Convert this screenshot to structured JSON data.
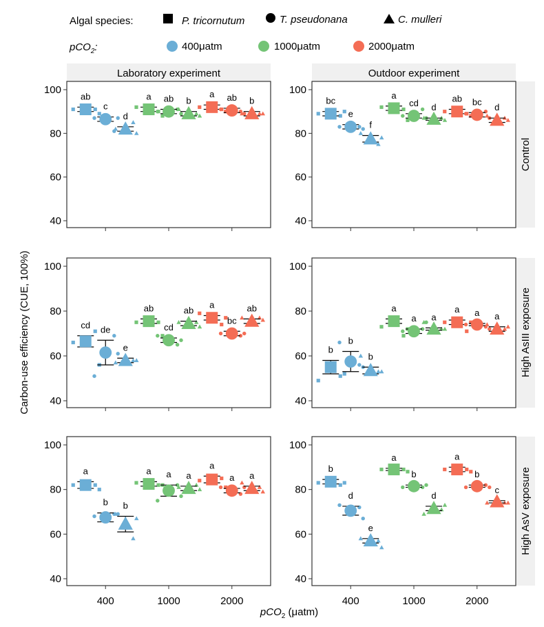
{
  "legend": {
    "species_label": "Algal species:",
    "species": [
      {
        "name": "P. tricornutum",
        "shape": "square"
      },
      {
        "name": "T. pseudonana",
        "shape": "circle"
      },
      {
        "name": "C. mulleri",
        "shape": "triangle"
      }
    ],
    "pco2_label_main": "pCO",
    "pco2_label_sub": "2",
    "pco2_label_suffix": ":",
    "pco2_levels": [
      {
        "name": "400μatm",
        "color": "#6baed6"
      },
      {
        "name": "1000μatm",
        "color": "#74c476"
      },
      {
        "name": "2000μatm",
        "color": "#f46d55"
      }
    ]
  },
  "chart_data": {
    "type": "scatter",
    "title": "",
    "ylabel": "Carbon-use efficiency (CUE, 100%)",
    "xlabel_main": "pCO",
    "xlabel_sub": "2",
    "xlabel_suffix": " (μatm)",
    "ylim": [
      38,
      104
    ],
    "yticks": [
      40,
      60,
      80,
      100
    ],
    "categories": [
      "400",
      "1000",
      "2000"
    ],
    "columns": [
      "Laboratory experiment",
      "Outdoor experiment"
    ],
    "rows": [
      "Control",
      "High AsIII exposure",
      "High AsV exposure"
    ],
    "species_order": [
      "P. tricornutum",
      "T. pseudonana",
      "C. mulleri"
    ],
    "colors": {
      "400": "#6baed6",
      "1000": "#74c476",
      "2000": "#f46d55"
    },
    "panels": [
      {
        "column": "Laboratory experiment",
        "row": "Control",
        "groups": [
          {
            "pco2": "400",
            "means": [
              91,
              86.5,
              82
            ],
            "se": [
              1,
              1,
              1
            ],
            "letters": [
              "ab",
              "c",
              "d"
            ],
            "points": [
              [
                91,
                91,
                89
              ],
              [
                87,
                81,
                87
              ],
              [
                82,
                85,
                80
              ]
            ]
          },
          {
            "pco2": "1000",
            "means": [
              91,
              90,
              89
            ],
            "se": [
              1,
              1,
              1
            ],
            "letters": [
              "a",
              "ab",
              "b"
            ],
            "points": [
              [
                92,
                90,
                88
              ],
              [
                90,
                91,
                89
              ],
              [
                91,
                89,
                88
              ]
            ]
          },
          {
            "pco2": "2000",
            "means": [
              92,
              90.5,
              89
            ],
            "se": [
              1,
              1,
              1
            ],
            "letters": [
              "a",
              "ab",
              "b"
            ],
            "points": [
              [
                92,
                91,
                90
              ],
              [
                91,
                90,
                89
              ],
              [
                89,
                89,
                89
              ]
            ]
          }
        ]
      },
      {
        "column": "Outdoor experiment",
        "row": "Control",
        "groups": [
          {
            "pco2": "400",
            "means": [
              89,
              83,
              77.5
            ],
            "se": [
              1,
              1,
              1.5
            ],
            "letters": [
              "bc",
              "e",
              "f"
            ],
            "points": [
              [
                89,
                88,
                90
              ],
              [
                83,
                83,
                82
              ],
              [
                80,
                75,
                78
              ]
            ]
          },
          {
            "pco2": "1000",
            "means": [
              91.5,
              88,
              86.5
            ],
            "se": [
              1,
              1,
              0.5
            ],
            "letters": [
              "a",
              "cd",
              "d"
            ],
            "points": [
              [
                92,
                91,
                86
              ],
              [
                88,
                91,
                87
              ],
              [
                87,
                87,
                86
              ]
            ]
          },
          {
            "pco2": "2000",
            "means": [
              90,
              88.5,
              86
            ],
            "se": [
              1,
              1,
              1
            ],
            "letters": [
              "ab",
              "bc",
              "d"
            ],
            "points": [
              [
                90,
                89,
                88
              ],
              [
                89,
                90,
                87
              ],
              [
                88,
                87,
                86
              ]
            ]
          }
        ]
      },
      {
        "column": "Laboratory experiment",
        "row": "High AsIII exposure",
        "groups": [
          {
            "pco2": "400",
            "means": [
              66.5,
              61.5,
              58
            ],
            "se": [
              2.5,
              5.5,
              1
            ],
            "letters": [
              "cd",
              "de",
              "e"
            ],
            "points": [
              [
                66,
                71,
                56
              ],
              [
                51,
                69,
                61
              ],
              [
                57,
                58,
                58
              ]
            ]
          },
          {
            "pco2": "1000",
            "means": [
              75.5,
              67,
              74.5
            ],
            "se": [
              1,
              1,
              1
            ],
            "letters": [
              "ab",
              "cd",
              "ab"
            ],
            "points": [
              [
                75,
                75,
                69
              ],
              [
                69,
                65,
                67
              ],
              [
                75,
                75,
                73
              ]
            ]
          },
          {
            "pco2": "2000",
            "means": [
              77,
              70,
              75.5
            ],
            "se": [
              1,
              1,
              1
            ],
            "letters": [
              "a",
              "bc",
              "ab"
            ],
            "points": [
              [
                79,
                74,
                77
              ],
              [
                70,
                69,
                70
              ],
              [
                77,
                77,
                76
              ]
            ]
          }
        ]
      },
      {
        "column": "Outdoor experiment",
        "row": "High AsIII exposure",
        "groups": [
          {
            "pco2": "400",
            "means": [
              55,
              57.5,
              53.5
            ],
            "se": [
              3,
              4.5,
              1.5
            ],
            "letters": [
              "b",
              "b",
              "b"
            ],
            "points": [
              [
                49,
                51,
                52
              ],
              [
                66,
                56,
                55
              ],
              [
                60,
                53,
                53
              ]
            ]
          },
          {
            "pco2": "1000",
            "means": [
              75.5,
              71,
              72
            ],
            "se": [
              1,
              1,
              0.5
            ],
            "letters": [
              "a",
              "a",
              "a"
            ],
            "points": [
              [
                73,
                69,
                72
              ],
              [
                71,
                72,
                75
              ],
              [
                75,
                72,
                72
              ]
            ]
          },
          {
            "pco2": "2000",
            "means": [
              75,
              74,
              72
            ],
            "se": [
              1,
              0.5,
              1
            ],
            "letters": [
              "a",
              "a",
              "a"
            ],
            "points": [
              [
                75,
                71,
                75
              ],
              [
                74,
                73,
                72
              ],
              [
                74,
                72,
                73
              ]
            ]
          }
        ]
      },
      {
        "column": "Laboratory experiment",
        "row": "High AsV exposure",
        "groups": [
          {
            "pco2": "400",
            "means": [
              82,
              67.5,
              64.5
            ],
            "se": [
              1.5,
              2,
              3.5
            ],
            "letters": [
              "a",
              "b",
              "b"
            ],
            "points": [
              [
                82,
                82,
                80
              ],
              [
                68,
                69,
                69
              ],
              [
                69,
                58,
                67
              ]
            ]
          },
          {
            "pco2": "1000",
            "means": [
              82.5,
              79.5,
              80.5
            ],
            "se": [
              1,
              2.5,
              1
            ],
            "letters": [
              "a",
              "a",
              "a"
            ],
            "points": [
              [
                83,
                82,
                82
              ],
              [
                75,
                82,
                77
              ],
              [
                81,
                82,
                80
              ]
            ]
          },
          {
            "pco2": "2000",
            "means": [
              84.5,
              79.5,
              80.5
            ],
            "se": [
              1.5,
              1,
              1
            ],
            "letters": [
              "a",
              "a",
              "a"
            ],
            "points": [
              [
                84,
                85,
                81
              ],
              [
                81,
                78,
                81
              ],
              [
                83,
                81,
                79
              ]
            ]
          }
        ]
      },
      {
        "column": "Outdoor experiment",
        "row": "High AsV exposure",
        "groups": [
          {
            "pco2": "400",
            "means": [
              83.5,
              70.5,
              57
            ],
            "se": [
              1,
              2,
              1
            ],
            "letters": [
              "b",
              "d",
              "e"
            ],
            "points": [
              [
                83,
                82,
                83
              ],
              [
                73,
                72,
                67
              ],
              [
                58,
                57,
                54
              ]
            ]
          },
          {
            "pco2": "1000",
            "means": [
              89,
              81.5,
              71.5
            ],
            "se": [
              0.5,
              0.5,
              1
            ],
            "letters": [
              "a",
              "b",
              "d"
            ],
            "points": [
              [
                89,
                89,
                88
              ],
              [
                81,
                81,
                82
              ],
              [
                69,
                71,
                73
              ]
            ]
          },
          {
            "pco2": "2000",
            "means": [
              89,
              81.5,
              74.5
            ],
            "se": [
              1,
              0.5,
              0.5
            ],
            "letters": [
              "a",
              "b",
              "c"
            ],
            "points": [
              [
                89,
                89,
                88
              ],
              [
                81,
                82,
                81
              ],
              [
                74,
                74,
                74
              ]
            ]
          }
        ]
      }
    ]
  }
}
